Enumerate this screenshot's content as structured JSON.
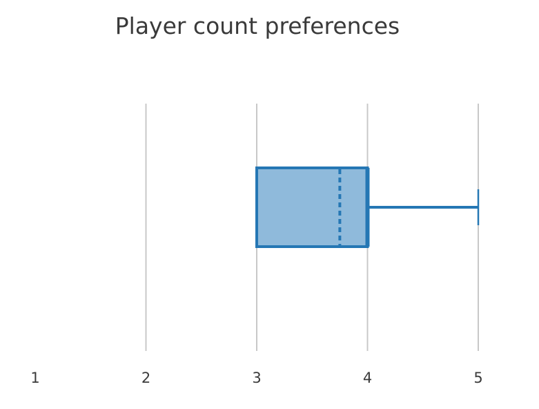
{
  "chart_data": {
    "type": "box",
    "title": "Player count preferences",
    "orientation": "horizontal",
    "xlabel": "",
    "ylabel": "",
    "xlim": [
      1,
      5
    ],
    "x_ticks": [
      "1",
      "2",
      "3",
      "4",
      "5"
    ],
    "grid": true,
    "series": [
      {
        "min": 3,
        "q1": 3,
        "median": 4,
        "mean": 3.75,
        "q3": 4,
        "max": 5
      }
    ],
    "colors": {
      "box_fill": "#8fbadb",
      "box_stroke": "#2577b4",
      "grid": "#c8c8c8",
      "text": "#3a3a3a"
    }
  }
}
